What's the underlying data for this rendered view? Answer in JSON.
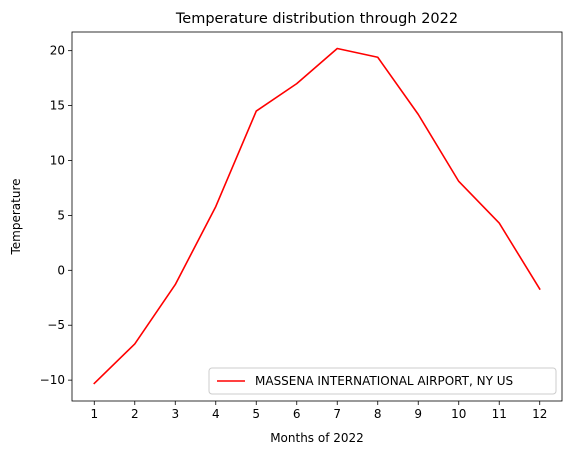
{
  "chart_data": {
    "type": "line",
    "title": "Temperature distribution through 2022",
    "xlabel": "Months of 2022",
    "ylabel": "Temperature",
    "x": [
      1,
      2,
      3,
      4,
      5,
      6,
      7,
      8,
      9,
      10,
      11,
      12
    ],
    "xticks": [
      "1",
      "2",
      "3",
      "4",
      "5",
      "6",
      "7",
      "8",
      "9",
      "10",
      "11",
      "12"
    ],
    "yticks": [
      -10,
      -5,
      0,
      5,
      10,
      15,
      20
    ],
    "ytick_labels": [
      "−10",
      "−5",
      "0",
      "5",
      "10",
      "15",
      "20"
    ],
    "xlim": [
      0.45,
      12.55
    ],
    "ylim": [
      -11.9,
      21.7
    ],
    "grid": false,
    "legend_position": "lower right",
    "series": [
      {
        "name": "MASSENA INTERNATIONAL AIRPORT, NY US",
        "color": "#ff0000",
        "values": [
          -10.3,
          -6.7,
          -1.3,
          5.8,
          14.5,
          17.0,
          20.2,
          19.4,
          14.2,
          8.1,
          4.3,
          -1.7
        ]
      }
    ]
  }
}
